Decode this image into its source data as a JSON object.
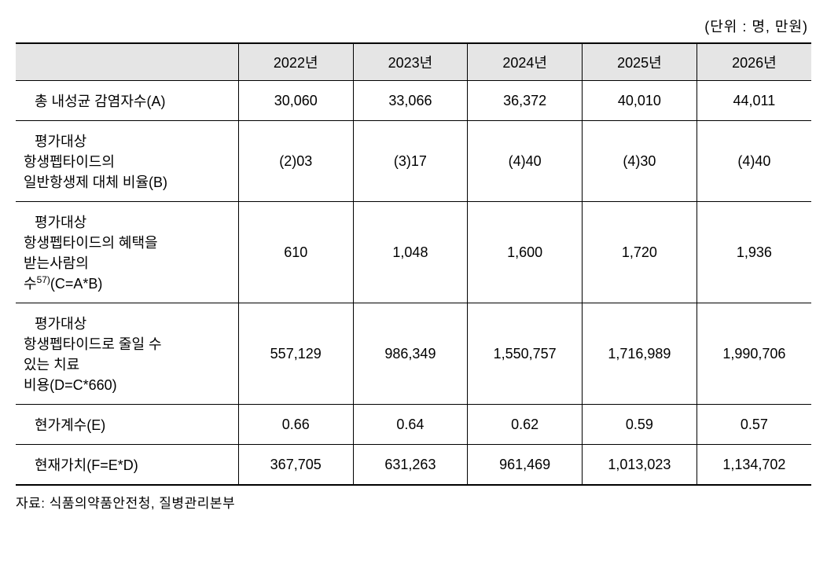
{
  "unit_label": "(단위 : 명, 만원)",
  "columns": {
    "blank": "",
    "y2022": "2022년",
    "y2023": "2023년",
    "y2024": "2024년",
    "y2025": "2025년",
    "y2026": "2026년"
  },
  "rows": {
    "r1": {
      "label": "총 내성균 감염자수(A)",
      "y2022": "30,060",
      "y2023": "33,066",
      "y2024": "36,372",
      "y2025": "40,010",
      "y2026": "44,011"
    },
    "r2": {
      "label_line1": "평가대상",
      "label_line2": "항생펩타이드의",
      "label_line3": "일반항생제 대체 비율(B)",
      "y2022": "(2)03",
      "y2023": "(3)17",
      "y2024": "(4)40",
      "y2025": "(4)30",
      "y2026": "(4)40"
    },
    "r3": {
      "label_line1": "평가대상",
      "label_line2": "항생펩타이드의 혜택을",
      "label_line3": "받는사람의",
      "label_line4a": "수",
      "label_line4_sup": "57)",
      "label_line4b": "(C=A*B)",
      "y2022": "610",
      "y2023": "1,048",
      "y2024": "1,600",
      "y2025": "1,720",
      "y2026": "1,936"
    },
    "r4": {
      "label_line1": "평가대상",
      "label_line2": "항생펩타이드로 줄일 수",
      "label_line3": "있는 치료",
      "label_line4": "비용(D=C*660)",
      "y2022": "557,129",
      "y2023": "986,349",
      "y2024": "1,550,757",
      "y2025": "1,716,989",
      "y2026": "1,990,706"
    },
    "r5": {
      "label": "현가계수(E)",
      "y2022": "0.66",
      "y2023": "0.64",
      "y2024": "0.62",
      "y2025": "0.59",
      "y2026": "0.57"
    },
    "r6": {
      "label": "현재가치(F=E*D)",
      "y2022": "367,705",
      "y2023": "631,263",
      "y2024": "961,469",
      "y2025": "1,013,023",
      "y2026": "1,134,702"
    }
  },
  "source": "자료: 식품의약품안전청, 질병관리본부"
}
